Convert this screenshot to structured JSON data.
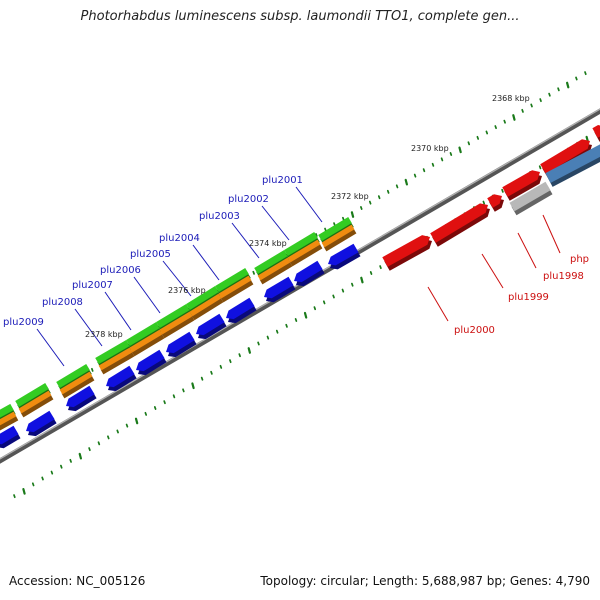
{
  "title": "Photorhabdus luminescens subsp. laumondii TTO1, complete gen...",
  "footer": {
    "accession": "Accession: NC_005126",
    "summary": "Topology: circular; Length: 5,688,987 bp; Genes: 4,790"
  },
  "kbp_labels": [
    "2368 kbp",
    "2370 kbp",
    "2372 kbp",
    "2374 kbp",
    "2376 kbp",
    "2378 kbp"
  ],
  "genes_reverse": [
    "plu2001",
    "plu2002",
    "plu2003",
    "plu2004",
    "plu2005",
    "plu2006",
    "plu2007",
    "plu2008",
    "plu2009"
  ],
  "genes_forward": [
    "php",
    "plu1998",
    "plu1999",
    "plu2000"
  ],
  "colors": {
    "backbone": "#7a7a7a",
    "green": "#33cc22",
    "orange": "#f08c10",
    "blue": "#1010e0",
    "red": "#e01010",
    "steel": "#4a7fb5",
    "gray": "#b8b8b8",
    "ticks": "#1a7a1a",
    "label_blue": "#1c1cb8",
    "label_red": "#cc1010"
  }
}
